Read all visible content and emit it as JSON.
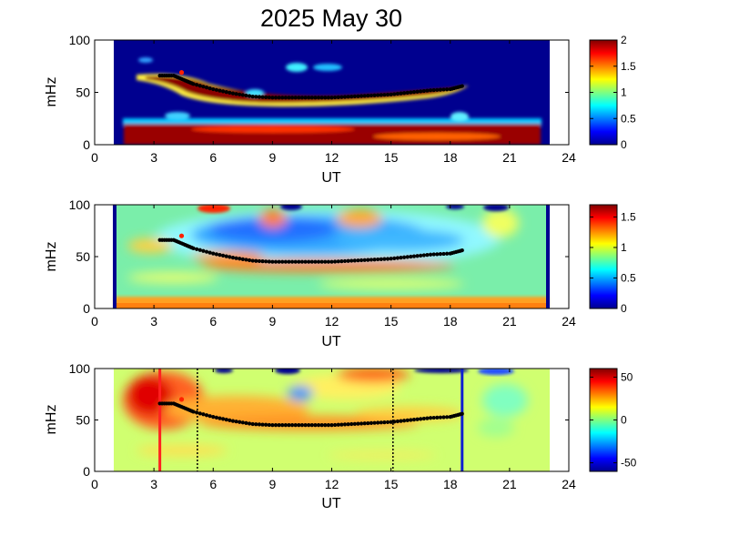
{
  "title": "2025 May 30",
  "colors": {
    "plot_background": "#00008f",
    "ridge_marker": "#000000",
    "highlight_marker": "#ff2000",
    "event_line_red": "#ff2020",
    "event_line_blue": "#1020d0",
    "dotted_line": "#000000"
  },
  "chart_data": [
    {
      "type": "heatmap",
      "panel": "top",
      "xlabel": "UT",
      "ylabel": "mHz",
      "xlim": [
        0,
        24
      ],
      "ylim": [
        0,
        100
      ],
      "xticks": [
        "0",
        "3",
        "6",
        "9",
        "12",
        "15",
        "18",
        "21",
        "24"
      ],
      "yticks": [
        "0",
        "50",
        "100"
      ],
      "data_extent_ut": [
        1,
        22.6
      ],
      "colorbar": {
        "min": 0,
        "max": 2,
        "ticks": [
          "0",
          "0.5",
          "1",
          "1.5",
          "2"
        ]
      },
      "ridge": {
        "x": [
          3.3,
          4.0,
          4.5,
          5.0,
          6.0,
          7.0,
          8.0,
          9.0,
          10.0,
          11.0,
          12.0,
          13.0,
          14.0,
          15.0,
          16.0,
          17.0,
          18.0,
          18.6
        ],
        "y": [
          66,
          66,
          62,
          58,
          53,
          49,
          46,
          45,
          45,
          45,
          45,
          46,
          47,
          48,
          50,
          52,
          53,
          56
        ]
      },
      "highlight_point": {
        "x": 4.4,
        "y": 69
      }
    },
    {
      "type": "heatmap",
      "panel": "middle",
      "xlabel": "UT",
      "ylabel": "mHz",
      "xlim": [
        0,
        24
      ],
      "ylim": [
        0,
        100
      ],
      "xticks": [
        "0",
        "3",
        "6",
        "9",
        "12",
        "15",
        "18",
        "21",
        "24"
      ],
      "yticks": [
        "0",
        "50",
        "100"
      ],
      "data_extent_ut": [
        1,
        23
      ],
      "colorbar": {
        "min": 0,
        "max": 1.7,
        "ticks": [
          "0",
          "0.5",
          "1",
          "1.5"
        ]
      },
      "ridge": {
        "x": [
          3.3,
          4.0,
          4.5,
          5.0,
          6.0,
          7.0,
          8.0,
          9.0,
          10.0,
          11.0,
          12.0,
          13.0,
          14.0,
          15.0,
          16.0,
          17.0,
          18.0,
          18.6
        ],
        "y": [
          66,
          66,
          62,
          58,
          53,
          49,
          46,
          45,
          45,
          45,
          45,
          46,
          47,
          48,
          50,
          52,
          53,
          56
        ]
      },
      "highlight_point": {
        "x": 4.4,
        "y": 70
      }
    },
    {
      "type": "heatmap",
      "panel": "bottom",
      "xlabel": "UT",
      "ylabel": "mHz",
      "xlim": [
        0,
        24
      ],
      "ylim": [
        0,
        100
      ],
      "xticks": [
        "0",
        "3",
        "6",
        "9",
        "12",
        "15",
        "18",
        "21",
        "24"
      ],
      "yticks": [
        "0",
        "50",
        "100"
      ],
      "data_extent_ut": [
        1,
        23
      ],
      "colorbar": {
        "min": -60,
        "max": 60,
        "ticks": [
          "-50",
          "0",
          "50"
        ]
      },
      "ridge": {
        "x": [
          3.3,
          4.0,
          4.5,
          5.0,
          6.0,
          7.0,
          8.0,
          9.0,
          10.0,
          11.0,
          12.0,
          13.0,
          14.0,
          15.0,
          16.0,
          17.0,
          18.0,
          18.6
        ],
        "y": [
          66,
          66,
          62,
          58,
          53,
          49,
          46,
          45,
          45,
          45,
          45,
          46,
          47,
          48,
          50,
          52,
          53,
          56
        ]
      },
      "highlight_point": {
        "x": 4.4,
        "y": 70
      },
      "vertical_lines": [
        {
          "x": 3.3,
          "style": "solid",
          "color": "red"
        },
        {
          "x": 5.2,
          "style": "dotted",
          "color": "black"
        },
        {
          "x": 15.1,
          "style": "dotted",
          "color": "black"
        },
        {
          "x": 18.6,
          "style": "solid",
          "color": "blue"
        }
      ]
    }
  ]
}
